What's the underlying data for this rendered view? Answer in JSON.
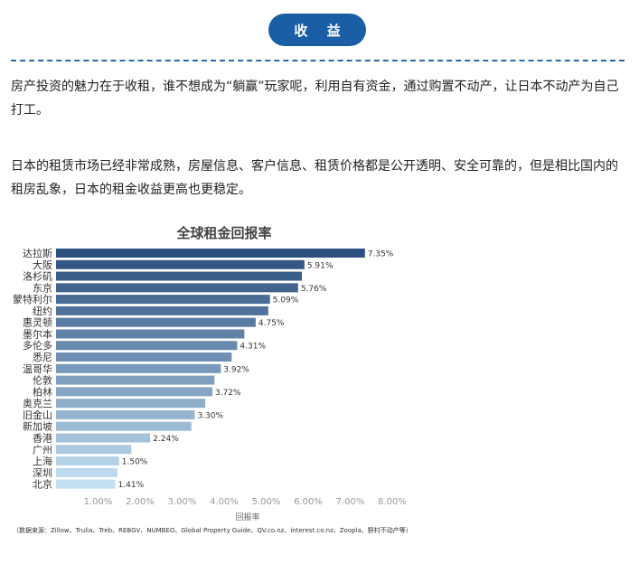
{
  "header": {
    "label": "收 益"
  },
  "paragraphs": [
    "房产投资的魅力在于收租，谁不想成为“躺赢”玩家呢，利用自有资金，通过购置不动产，让日本不动产为自己打工。",
    "日本的租赁市场已经非常成熟，房屋信息、客户信息、租赁价格都是公开透明、安全可靠的，但是相比国内的租房乱象，日本的租金收益更高也更稳定。"
  ],
  "chart_data": {
    "type": "bar",
    "orientation": "horizontal",
    "title": "全球租金回报率",
    "xlabel": "回报率",
    "xlim": [
      0,
      8
    ],
    "x_ticks": [
      "1.00%",
      "2.00%",
      "3.00%",
      "4.00%",
      "5.00%",
      "6.00%",
      "7.00%",
      "8.00%"
    ],
    "grid": false,
    "categories": [
      "达拉斯",
      "大阪",
      "洛杉矶",
      "东京",
      "蒙特利尔",
      "纽约",
      "惠灵顿",
      "墨尔本",
      "多伦多",
      "悉尼",
      "温哥华",
      "伦敦",
      "柏林",
      "奥克兰",
      "旧金山",
      "新加坡",
      "香港",
      "广州",
      "上海",
      "深圳",
      "北京"
    ],
    "values": [
      7.35,
      5.91,
      5.85,
      5.76,
      5.09,
      5.05,
      4.75,
      4.48,
      4.31,
      4.18,
      3.92,
      3.77,
      3.72,
      3.55,
      3.3,
      3.22,
      2.24,
      1.79,
      1.5,
      1.46,
      1.41
    ],
    "data_labels": [
      "7.35%",
      "5.91%",
      "",
      "5.76%",
      "5.09%",
      "",
      "4.75%",
      "",
      "4.31%",
      "",
      "3.92%",
      "",
      "3.72%",
      "",
      "3.30%",
      "",
      "2.24%",
      "",
      "1.50%",
      "",
      "1.41%"
    ],
    "colors": {
      "dark": "#2b4f7e",
      "light": "#c2e0f2"
    }
  },
  "source": "（数据来源：Zillow、Trulia、Treb、REBGV、NUMBEO、Global Property Guide、QV.co.nz、interest.co.nz、Zoopla、野村不动产等）"
}
